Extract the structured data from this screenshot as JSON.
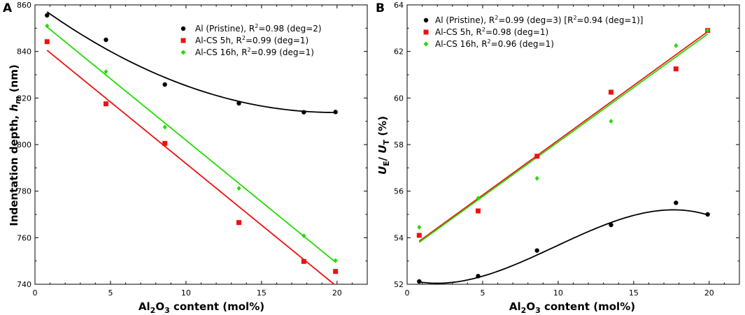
{
  "chart_data": [
    {
      "panel": "A",
      "type": "scatter",
      "xlabel": "Al2O3 content (mol%)",
      "ylabel": "Indentation depth, hm (nm)",
      "xlim": [
        0,
        22
      ],
      "ylim": [
        740,
        860
      ],
      "xticks": [
        0,
        5,
        10,
        15,
        20
      ],
      "yticks": [
        740,
        760,
        780,
        800,
        820,
        840,
        860
      ],
      "series": [
        {
          "name": "Al (Pristine)",
          "legend": "Al (Pristine), R²=0.98 (deg=2)",
          "color": "#000000",
          "marker": "circle",
          "x": [
            0.8,
            4.7,
            8.6,
            13.5,
            17.8,
            19.9
          ],
          "y": [
            855.5,
            845.0,
            825.8,
            817.7,
            813.9,
            814.0
          ],
          "fit": {
            "degree": 2,
            "x_range": [
              0.8,
              19.9
            ],
            "anchors": [
              [
                0.8,
                857.0
              ],
              [
                10.35,
                824.5
              ],
              [
                19.9,
                813.8
              ]
            ]
          }
        },
        {
          "name": "Al-CS 5h",
          "legend": "Al-CS 5h, R²=0.99 (deg=1)",
          "color": "#ee1111",
          "marker": "square",
          "x": [
            0.8,
            4.7,
            8.6,
            13.5,
            17.8,
            19.9
          ],
          "y": [
            844.2,
            817.5,
            800.5,
            766.5,
            749.8,
            745.5
          ],
          "fit": {
            "degree": 1,
            "x_range": [
              0.8,
              19.9
            ],
            "anchors": [
              [
                0.8,
                840.5
              ],
              [
                19.9,
                739.5
              ]
            ]
          }
        },
        {
          "name": "Al-CS 16h",
          "legend": "Al-CS 16h, R²=0.99 (deg=1)",
          "color": "#22dd00",
          "marker": "diamond",
          "x": [
            0.8,
            4.7,
            8.6,
            13.5,
            17.8,
            19.9
          ],
          "y": [
            851.0,
            831.3,
            807.5,
            781.2,
            760.8,
            750.2
          ],
          "fit": {
            "degree": 1,
            "x_range": [
              0.8,
              19.9
            ],
            "anchors": [
              [
                0.8,
                850.5
              ],
              [
                19.9,
                749.5
              ]
            ]
          }
        }
      ]
    },
    {
      "panel": "B",
      "type": "scatter",
      "xlabel": "Al2O3 content (mol%)",
      "ylabel": "UE / UT (%)",
      "xlim": [
        0,
        22
      ],
      "ylim": [
        52,
        64
      ],
      "xticks": [
        0,
        5,
        10,
        15,
        20
      ],
      "yticks": [
        52,
        54,
        56,
        58,
        60,
        62,
        64
      ],
      "series": [
        {
          "name": "Al (Pristine)",
          "legend": "Al (Pristine), R²=0.99 (deg=3) [R²=0.94 (deg=1)]",
          "color": "#000000",
          "marker": "circle",
          "x": [
            0.8,
            4.7,
            8.6,
            13.5,
            17.8,
            19.9
          ],
          "y": [
            52.12,
            52.35,
            53.45,
            54.55,
            55.5,
            55.0
          ],
          "fit": {
            "degree": 3,
            "x_range": [
              0.8,
              19.9
            ],
            "anchors": [
              [
                0.8,
                52.1
              ],
              [
                7.167,
                52.85
              ],
              [
                13.533,
                54.66
              ],
              [
                19.9,
                54.98
              ]
            ]
          }
        },
        {
          "name": "Al-CS 5h",
          "legend": "Al-CS 5h, R²=0.98 (deg=1)",
          "color": "#ee1111",
          "marker": "square",
          "x": [
            0.8,
            4.7,
            8.6,
            13.5,
            17.8,
            19.9
          ],
          "y": [
            54.1,
            55.15,
            57.5,
            60.25,
            61.25,
            62.9
          ],
          "fit": {
            "degree": 1,
            "x_range": [
              0.8,
              19.9
            ],
            "anchors": [
              [
                0.8,
                53.85
              ],
              [
                19.9,
                62.85
              ]
            ]
          }
        },
        {
          "name": "Al-CS 16h",
          "legend": "Al-CS 16h, R²=0.96 (deg=1)",
          "color": "#22dd00",
          "marker": "diamond",
          "x": [
            0.8,
            4.7,
            8.6,
            13.5,
            17.8,
            19.9
          ],
          "y": [
            54.45,
            55.7,
            56.55,
            59.0,
            62.25,
            62.9
          ],
          "fit": {
            "degree": 1,
            "x_range": [
              0.8,
              19.9
            ],
            "anchors": [
              [
                0.8,
                53.8
              ],
              [
                19.9,
                62.75
              ]
            ]
          }
        }
      ]
    }
  ]
}
